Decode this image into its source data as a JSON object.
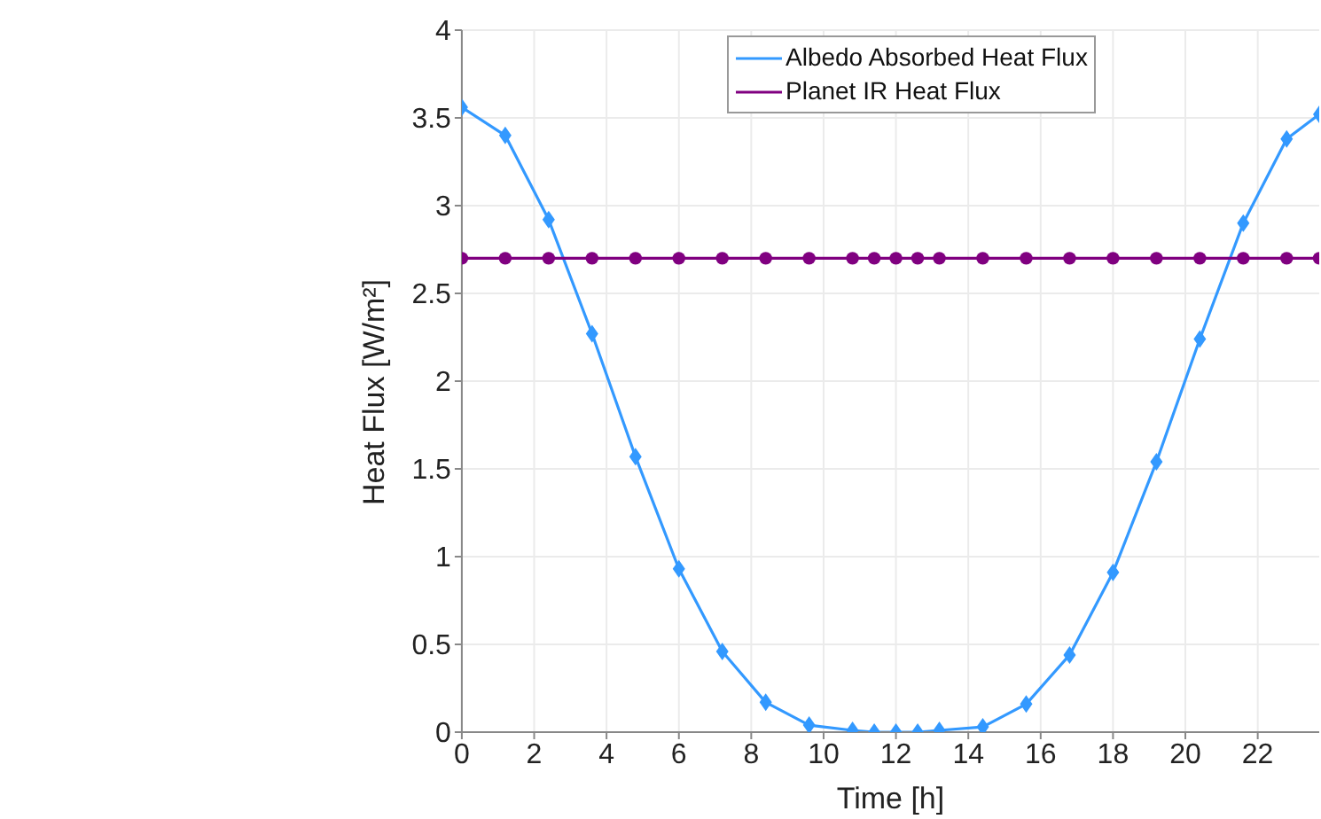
{
  "chart_data": {
    "type": "line",
    "xlabel": "Time [h]",
    "ylabel": "Heat Flux [W/m²]",
    "x": [
      0,
      1.2,
      2.4,
      3.6,
      4.8,
      6,
      7.2,
      8.4,
      9.6,
      10.8,
      11.4,
      12,
      12.6,
      13.2,
      14.4,
      15.6,
      16.8,
      18,
      19.2,
      20.4,
      21.6,
      22.8,
      23.7
    ],
    "series": [
      {
        "name": "Albedo Absorbed Heat Flux",
        "color": "#3399ff",
        "marker": "diamond",
        "values": [
          3.56,
          3.4,
          2.92,
          2.27,
          1.57,
          0.93,
          0.46,
          0.17,
          0.04,
          0.01,
          0,
          0,
          0,
          0.01,
          0.03,
          0.16,
          0.44,
          0.91,
          1.54,
          2.24,
          2.9,
          3.38,
          3.52
        ]
      },
      {
        "name": "Planet IR Heat Flux",
        "color": "#800080",
        "marker": "circle",
        "values": [
          2.7,
          2.7,
          2.7,
          2.7,
          2.7,
          2.7,
          2.7,
          2.7,
          2.7,
          2.7,
          2.7,
          2.7,
          2.7,
          2.7,
          2.7,
          2.7,
          2.7,
          2.7,
          2.7,
          2.7,
          2.7,
          2.7,
          2.7
        ]
      }
    ],
    "xlim": [
      0,
      23.7
    ],
    "xticks": [
      0,
      2,
      4,
      6,
      8,
      10,
      12,
      14,
      16,
      18,
      20,
      22
    ],
    "ylim": [
      0,
      4
    ],
    "yticks": [
      0,
      0.5,
      1,
      1.5,
      2,
      2.5,
      3,
      3.5,
      4
    ],
    "grid": true,
    "legend": "top right",
    "line_style": "solid"
  }
}
